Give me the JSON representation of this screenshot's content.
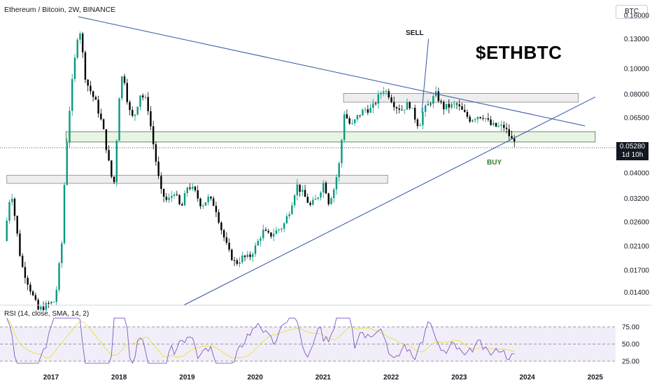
{
  "header": {
    "title": "Ethereum / Bitcoin, 2W, BINANCE",
    "currency_button": "BTC"
  },
  "price_badge": {
    "price": "0.05280",
    "countdown": "1d 10h"
  },
  "annotations": {
    "ticker": "$ETHBTC",
    "sell": "SELL",
    "buy": "BUY"
  },
  "rsi": {
    "label": "RSI (14, close, SMA, 14, 2)",
    "levels": [
      "75.00",
      "50.00",
      "25.00"
    ],
    "series": [
      {
        "name": "RSI",
        "color": "#7e57c2"
      },
      {
        "name": "SMA",
        "color": "#e8e34d"
      }
    ]
  },
  "chart_data": {
    "type": "candlestick",
    "scale": "log",
    "x_ticks": [
      "2017",
      "2018",
      "2019",
      "2020",
      "2021",
      "2022",
      "2023",
      "2024",
      "2025"
    ],
    "y_ticks": [
      "0.16000",
      "0.13000",
      "0.10000",
      "0.08000",
      "0.06500",
      "0.04000",
      "0.03200",
      "0.02600",
      "0.02100",
      "0.01700",
      "0.01400"
    ],
    "ylim": [
      0.0125,
      0.17
    ],
    "xlim": [
      2016.25,
      2025.3
    ],
    "up_color": "#089981",
    "down_color": "#000000",
    "price_path": [
      [
        2016.35,
        0.022
      ],
      [
        2016.45,
        0.035
      ],
      [
        2016.6,
        0.018
      ],
      [
        2016.75,
        0.014
      ],
      [
        2016.85,
        0.012
      ],
      [
        2017.1,
        0.013
      ],
      [
        2017.2,
        0.022
      ],
      [
        2017.25,
        0.045
      ],
      [
        2017.33,
        0.08
      ],
      [
        2017.45,
        0.15
      ],
      [
        2017.55,
        0.09
      ],
      [
        2017.7,
        0.074
      ],
      [
        2017.8,
        0.06
      ],
      [
        2017.9,
        0.042
      ],
      [
        2017.96,
        0.035
      ],
      [
        2018.05,
        0.085
      ],
      [
        2018.1,
        0.098
      ],
      [
        2018.18,
        0.07
      ],
      [
        2018.25,
        0.064
      ],
      [
        2018.35,
        0.08
      ],
      [
        2018.45,
        0.075
      ],
      [
        2018.55,
        0.05
      ],
      [
        2018.65,
        0.034
      ],
      [
        2018.75,
        0.031
      ],
      [
        2018.85,
        0.034
      ],
      [
        2018.95,
        0.029
      ],
      [
        2019.05,
        0.036
      ],
      [
        2019.15,
        0.034
      ],
      [
        2019.25,
        0.03
      ],
      [
        2019.35,
        0.032
      ],
      [
        2019.45,
        0.03
      ],
      [
        2019.55,
        0.024
      ],
      [
        2019.65,
        0.02
      ],
      [
        2019.75,
        0.018
      ],
      [
        2019.85,
        0.019
      ],
      [
        2019.95,
        0.019
      ],
      [
        2020.05,
        0.021
      ],
      [
        2020.15,
        0.024
      ],
      [
        2020.25,
        0.023
      ],
      [
        2020.35,
        0.024
      ],
      [
        2020.45,
        0.025
      ],
      [
        2020.55,
        0.029
      ],
      [
        2020.65,
        0.036
      ],
      [
        2020.75,
        0.033
      ],
      [
        2020.85,
        0.03
      ],
      [
        2020.95,
        0.032
      ],
      [
        2021.05,
        0.037
      ],
      [
        2021.12,
        0.031
      ],
      [
        2021.2,
        0.035
      ],
      [
        2021.28,
        0.044
      ],
      [
        2021.35,
        0.068
      ],
      [
        2021.45,
        0.06
      ],
      [
        2021.55,
        0.066
      ],
      [
        2021.65,
        0.07
      ],
      [
        2021.75,
        0.07
      ],
      [
        2021.85,
        0.078
      ],
      [
        2021.92,
        0.084
      ],
      [
        2022.0,
        0.08
      ],
      [
        2022.1,
        0.072
      ],
      [
        2022.2,
        0.07
      ],
      [
        2022.3,
        0.074
      ],
      [
        2022.4,
        0.064
      ],
      [
        2022.45,
        0.06
      ],
      [
        2022.5,
        0.068
      ],
      [
        2022.6,
        0.074
      ],
      [
        2022.7,
        0.08
      ],
      [
        2022.8,
        0.071
      ],
      [
        2022.9,
        0.072
      ],
      [
        2023.0,
        0.073
      ],
      [
        2023.1,
        0.068
      ],
      [
        2023.2,
        0.064
      ],
      [
        2023.3,
        0.066
      ],
      [
        2023.4,
        0.066
      ],
      [
        2023.5,
        0.061
      ],
      [
        2023.6,
        0.06
      ],
      [
        2023.7,
        0.06
      ],
      [
        2023.75,
        0.057
      ],
      [
        2023.82,
        0.053
      ]
    ],
    "current_price": 0.0528,
    "trendlines": [
      {
        "name": "resistance",
        "from": [
          2017.4,
          0.158
        ],
        "to": [
          2024.85,
          0.0605
        ],
        "color": "#2e55a6"
      },
      {
        "name": "support",
        "from": [
          2018.95,
          0.0125
        ],
        "to": [
          2025.0,
          0.078
        ],
        "color": "#2e55a6"
      },
      {
        "name": "sell-arrow",
        "from": [
          2022.45,
          0.068
        ],
        "to": [
          2022.55,
          0.13
        ],
        "color": "#2e55a6"
      }
    ],
    "zones": [
      {
        "name": "top-zone",
        "x": [
          2021.3,
          2024.75
        ],
        "y": [
          0.0745,
          0.0805
        ],
        "fill": "#eeeeee",
        "stroke": "#888888"
      },
      {
        "name": "mid-zone",
        "x": [
          2017.22,
          2025.0
        ],
        "y": [
          0.0525,
          0.0575
        ],
        "fill": "#e8f5e4",
        "stroke": "#4a6f44"
      },
      {
        "name": "low-zone",
        "x": [
          2016.35,
          2021.95
        ],
        "y": [
          0.0365,
          0.0392
        ],
        "fill": "#eeeeee",
        "stroke": "#888888"
      }
    ]
  }
}
